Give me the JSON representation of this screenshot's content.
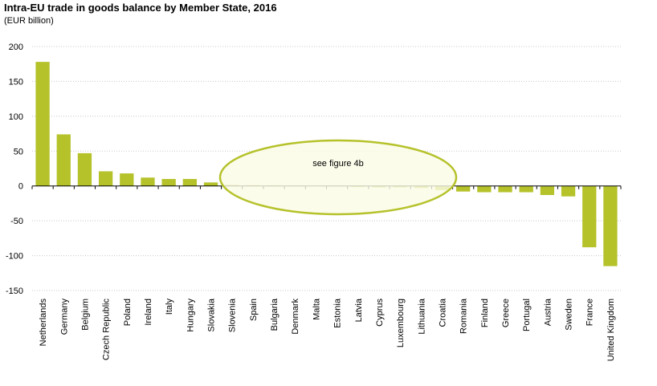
{
  "chart_data": {
    "type": "bar",
    "title": "Intra-EU trade in goods balance by Member State, 2016",
    "subtitle": "(EUR billion)",
    "xlabel": "",
    "ylabel": "",
    "ylim": [
      -150,
      200
    ],
    "yticks": [
      200,
      150,
      100,
      50,
      0,
      -50,
      -100,
      -150
    ],
    "grid": true,
    "categories": [
      "Netherlands",
      "Germany",
      "Belgium",
      "Czech Republic",
      "Poland",
      "Ireland",
      "Italy",
      "Hungary",
      "Slovakia",
      "Slovenia",
      "Spain",
      "Bulgaria",
      "Denmark",
      "Malta",
      "Estonia",
      "Latvia",
      "Cyprus",
      "Luxembourg",
      "Lithuania",
      "Croatia",
      "Romania",
      "Finland",
      "Greece",
      "Portugal",
      "Austria",
      "Sweden",
      "France",
      "United Kingdom"
    ],
    "values": [
      178,
      74,
      47,
      21,
      18,
      12,
      10,
      10,
      5,
      1.5,
      1.0,
      0.8,
      0.5,
      0.3,
      -0.5,
      -1.5,
      -2.0,
      -2.0,
      -3.0,
      -6.0,
      -8,
      -9,
      -9,
      -9,
      -13,
      -15,
      -88,
      -115
    ],
    "bar_color": "#b5c22a",
    "annotation": {
      "text": "see figure  4b",
      "fill": "#fbfbe6",
      "stroke": "#b5c22a"
    }
  }
}
